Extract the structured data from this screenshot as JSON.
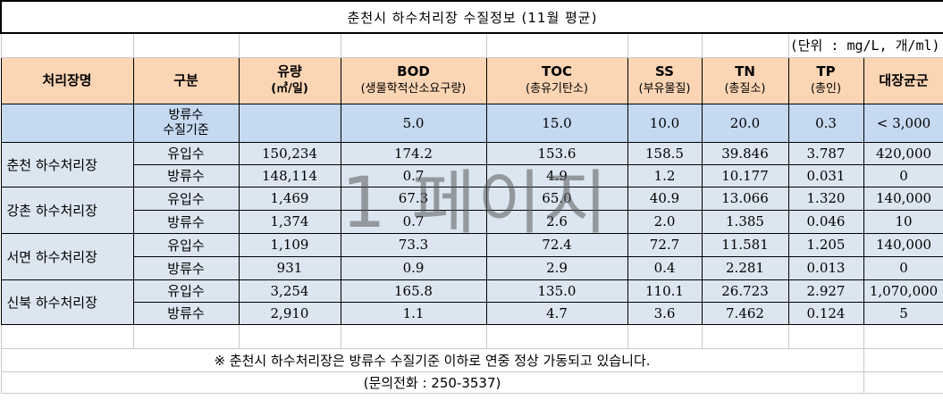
{
  "title": "춘천시  하수처리장  수질정보 (11월 평균)",
  "unit": "(단위 : mg/L, 개/ml)",
  "headers": {
    "plant": "처리장명",
    "kind": "구분",
    "flow": "유량",
    "flow_unit": "(㎥/일)",
    "bod": "BOD",
    "bod_sub": "(생물학적산소요구량)",
    "toc": "TOC",
    "toc_sub": "(총유기탄소)",
    "ss": "SS",
    "ss_sub": "(부유물질)",
    "tn": "TN",
    "tn_sub": "(총질소)",
    "tp": "TP",
    "tp_sub": "(총인)",
    "coliform": "대장균군"
  },
  "standard": {
    "label_line1": "방류수",
    "label_line2": "수질기준",
    "flow": "",
    "bod": "5.0",
    "toc": "15.0",
    "ss": "10.0",
    "tn": "20.0",
    "tp": "0.3",
    "coliform": "< 3,000"
  },
  "plants": [
    {
      "name": "춘천 하수처리장",
      "rows": [
        {
          "kind": "유입수",
          "flow": "150,234",
          "bod": "174.2",
          "toc": "153.6",
          "ss": "158.5",
          "tn": "39.846",
          "tp": "3.787",
          "coliform": "420,000"
        },
        {
          "kind": "방류수",
          "flow": "148,114",
          "bod": "0.7",
          "toc": "4.9",
          "ss": "1.2",
          "tn": "10.177",
          "tp": "0.031",
          "coliform": "0"
        }
      ]
    },
    {
      "name": "강촌 하수처리장",
      "rows": [
        {
          "kind": "유입수",
          "flow": "1,469",
          "bod": "67.3",
          "toc": "65.0",
          "ss": "40.9",
          "tn": "13.066",
          "tp": "1.320",
          "coliform": "140,000"
        },
        {
          "kind": "방류수",
          "flow": "1,374",
          "bod": "0.7",
          "toc": "2.6",
          "ss": "2.0",
          "tn": "1.385",
          "tp": "0.046",
          "coliform": "10"
        }
      ]
    },
    {
      "name": "서면 하수처리장",
      "rows": [
        {
          "kind": "유입수",
          "flow": "1,109",
          "bod": "73.3",
          "toc": "72.4",
          "ss": "72.7",
          "tn": "11.581",
          "tp": "1.205",
          "coliform": "140,000"
        },
        {
          "kind": "방류수",
          "flow": "931",
          "bod": "0.9",
          "toc": "2.9",
          "ss": "0.4",
          "tn": "2.281",
          "tp": "0.013",
          "coliform": "0"
        }
      ]
    },
    {
      "name": "신북 하수처리장",
      "rows": [
        {
          "kind": "유입수",
          "flow": "3,254",
          "bod": "165.8",
          "toc": "135.0",
          "ss": "110.1",
          "tn": "26.723",
          "tp": "2.927",
          "coliform": "1,070,000"
        },
        {
          "kind": "방류수",
          "flow": "2,910",
          "bod": "1.1",
          "toc": "4.7",
          "ss": "3.6",
          "tn": "7.462",
          "tp": "0.124",
          "coliform": "5"
        }
      ]
    }
  ],
  "footnote": "※ 춘천시 하수처리장은 방류수 수질기준 이하로 연중 정상 가동되고 있습니다.",
  "contact": "(문의전화 : 250-3537)",
  "watermark": "1 페이지"
}
